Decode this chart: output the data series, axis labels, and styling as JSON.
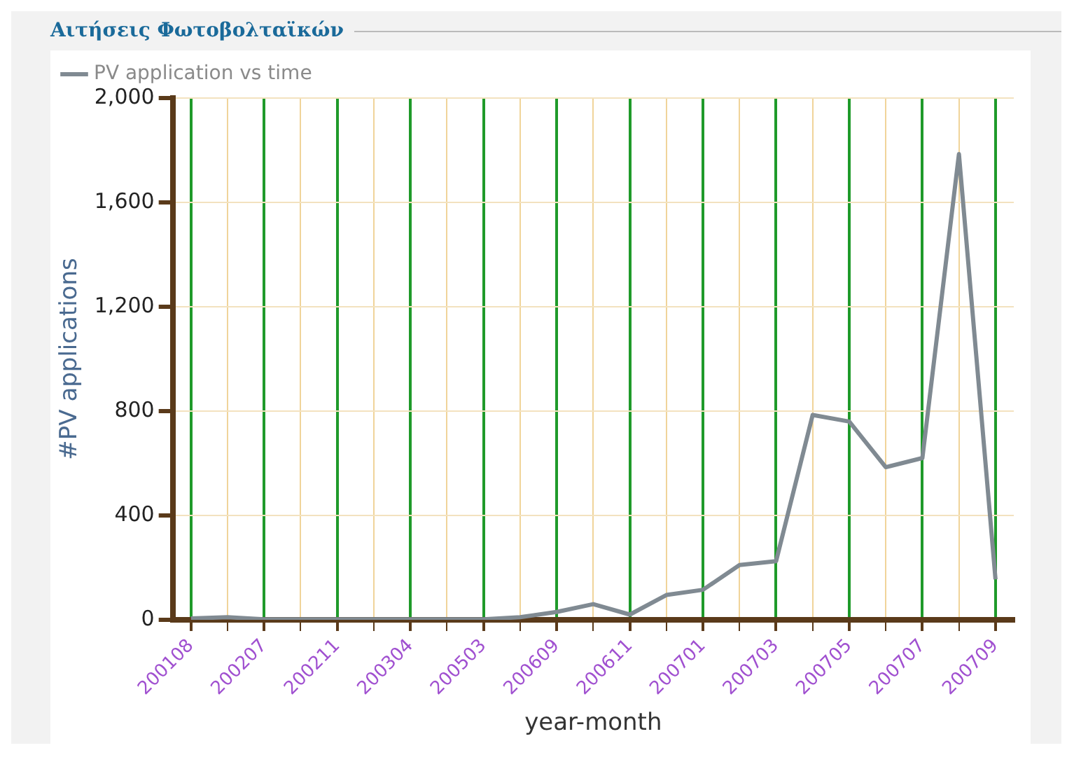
{
  "chart_data": {
    "type": "line",
    "title": "Αιτήσεις Φωτοβολταϊκών",
    "xlabel": "year-month",
    "ylabel": "#PV applications",
    "categories": [
      "200108",
      null,
      "200207",
      null,
      "200211",
      null,
      "200304",
      null,
      "200503",
      null,
      "200609",
      null,
      "200611",
      null,
      "200701",
      null,
      "200703",
      null,
      "200705",
      null,
      "200707",
      null,
      "200709"
    ],
    "series": [
      {
        "name": "PV application vs time",
        "color": "#808a92",
        "values": [
          5,
          10,
          2,
          2,
          2,
          2,
          2,
          2,
          2,
          10,
          30,
          60,
          20,
          95,
          115,
          210,
          225,
          785,
          760,
          585,
          620,
          1785,
          155
        ]
      }
    ],
    "ylim": [
      0,
      2000
    ],
    "yticks": [
      0,
      400,
      800,
      {
        "value": 1200,
        "label": "1,200"
      },
      {
        "value": 1600,
        "label": "1,600"
      },
      {
        "value": 2000,
        "label": "2,000"
      }
    ],
    "grid": true,
    "legend": "top left",
    "marker": "none"
  }
}
